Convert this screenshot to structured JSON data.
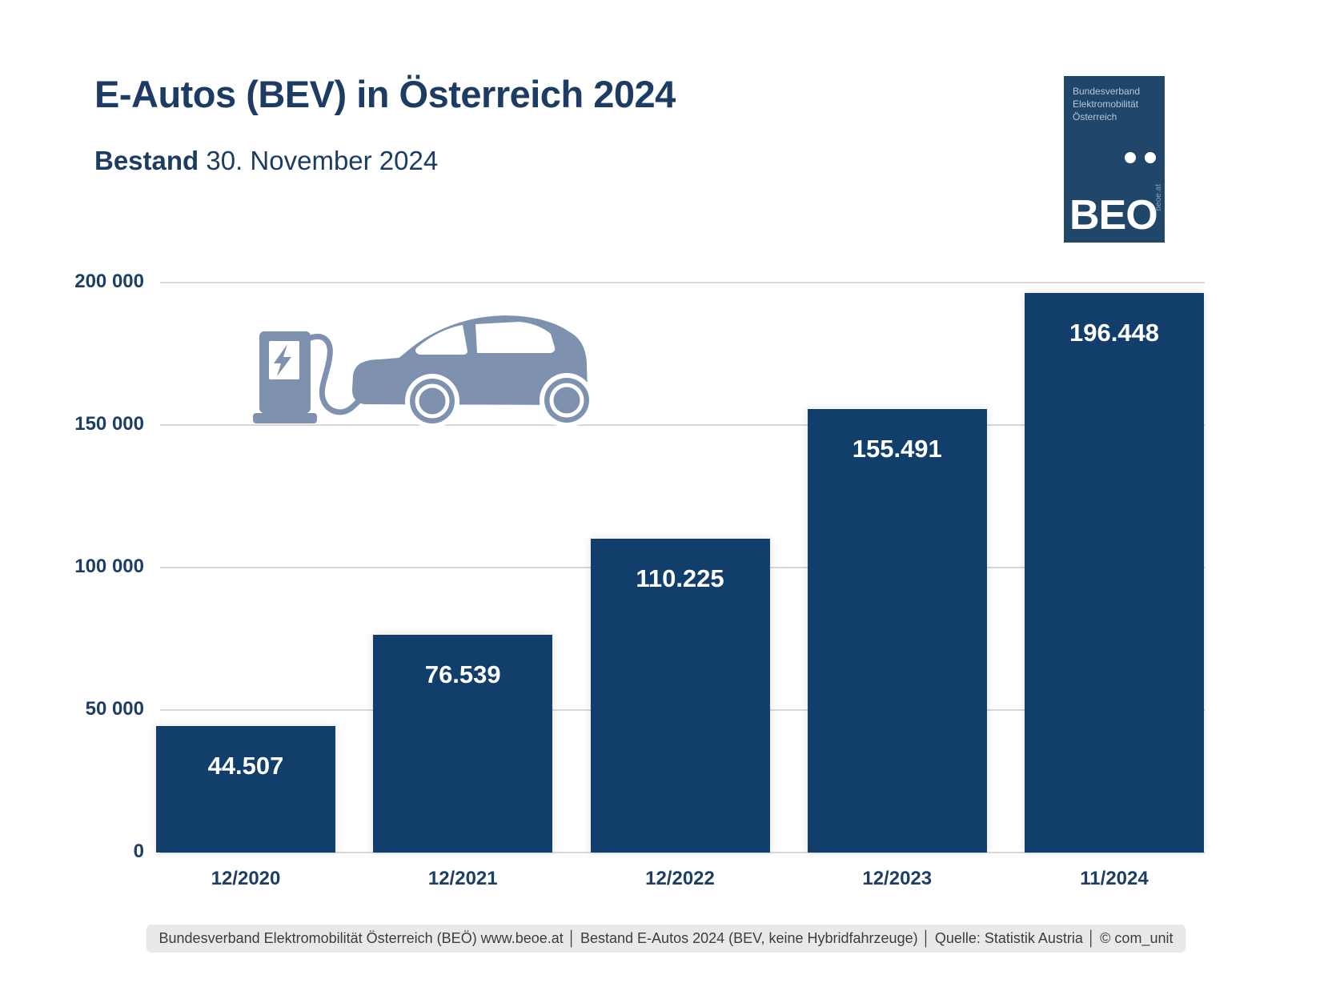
{
  "header": {
    "title": "E-Autos (BEV) in Österreich 2024",
    "subtitle_bold": "Bestand",
    "subtitle_date": " 30. November 2024"
  },
  "logo": {
    "org_line1": "Bundesverband",
    "org_line2": "Elektromobilität",
    "org_line3": "Österreich",
    "acronym": "BEO",
    "website": "beoe.at",
    "background": "#204669",
    "text_color": "#b9c6d6"
  },
  "chart_data": {
    "type": "bar",
    "title": "E-Autos (BEV) in Österreich 2024",
    "subtitle": "Bestand 30. November 2024",
    "categories": [
      "12/2020",
      "12/2021",
      "12/2022",
      "12/2023",
      "11/2024"
    ],
    "values": [
      44507,
      76539,
      110225,
      155491,
      196448
    ],
    "value_labels": [
      "44.507",
      "76.539",
      "110.225",
      "155.491",
      "196.448"
    ],
    "yticks": [
      {
        "value": 0,
        "label": "0"
      },
      {
        "value": 50000,
        "label": "50 000"
      },
      {
        "value": 100000,
        "label": "100 000"
      },
      {
        "value": 150000,
        "label": "150 000"
      },
      {
        "value": 200000,
        "label": "200 000"
      }
    ],
    "ylim": [
      0,
      200000
    ],
    "xlabel": "",
    "ylabel": "",
    "grid": "horizontal",
    "legend": "none",
    "bar_color": "#113e6a",
    "value_label_color": "#ffffff",
    "axis_label_color": "#1d3f66",
    "gridline_color": "#d9d9d9"
  },
  "icon": {
    "name": "ev-charging-car",
    "color": "#7e91ae"
  },
  "footer": {
    "text": "Bundesverband Elektromobilität Österreich (BEÖ) www.beoe.at │ Bestand E-Autos 2024 (BEV, keine Hybridfahrzeuge) │ Quelle: Statistik Austria │ © com_unit"
  },
  "colors": {
    "title": "#1d3c64",
    "bar": "#113e6a",
    "footer_bg": "#e9e9e9",
    "footer_text": "#3d3d3d",
    "page_bg": "#ffffff"
  }
}
